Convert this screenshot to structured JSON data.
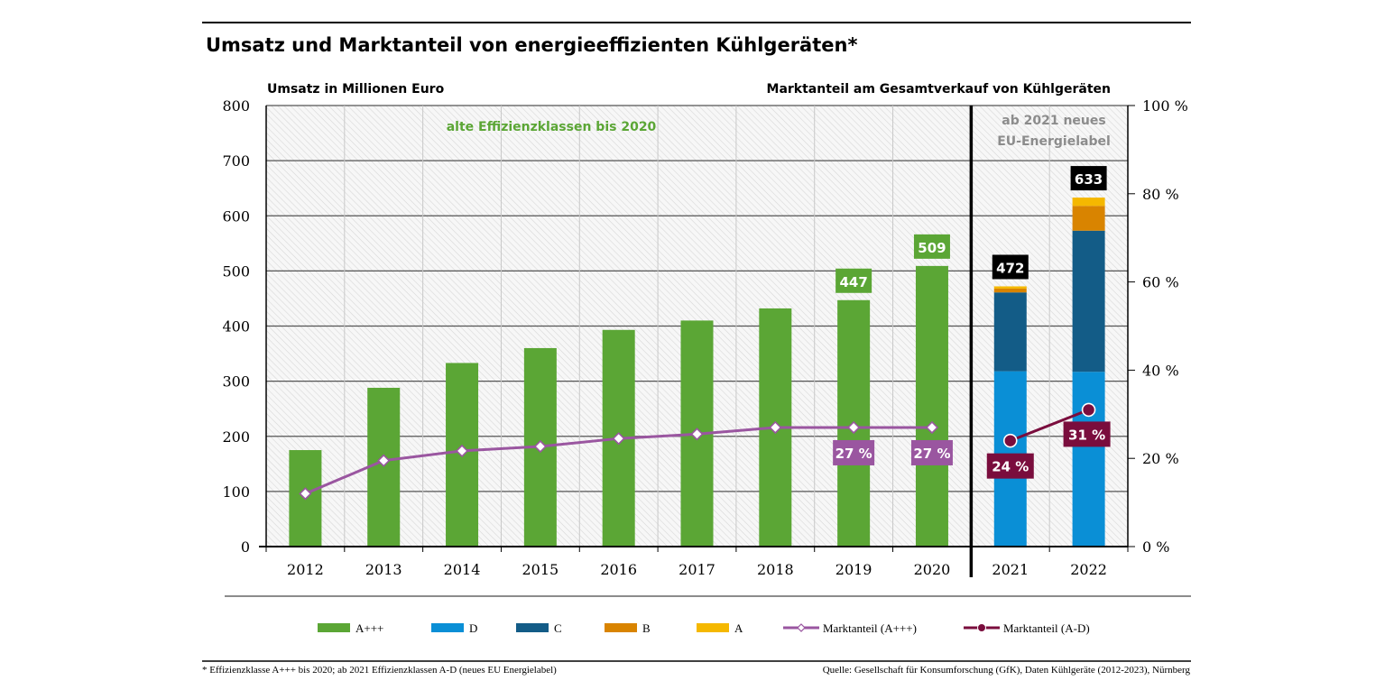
{
  "title": "Umsatz und Marktanteil von energieeffizienten Kühlgeräten*",
  "left_axis_title": "Umsatz in Millionen Euro",
  "right_axis_title": "Marktanteil am Gesamtverkauf von Kühlgeräten",
  "note_old": "alte Effizienzklassen bis 2020",
  "note_new_line1": "ab 2021 neues",
  "note_new_line2": "EU-Energielabel",
  "footnote": "* Effizienzklasse A+++ bis 2020; ab 2021 Effizienzklassen A-D (neues EU Energielabel)",
  "source": "Quelle: Gesellschaft für Konsumforschung (GfK), Daten Kühlgeräte (2012-2023), Nürnberg",
  "colors": {
    "A+++": "#5ba635",
    "D": "#0a8fd6",
    "C": "#135c87",
    "B": "#d98400",
    "A": "#f5b800",
    "share_old": "#9a56a0",
    "share_new": "#7a0d3d",
    "total_label_bg": "#000000",
    "grid": "#555555"
  },
  "chart_data": {
    "type": "bar",
    "categories": [
      "2012",
      "2013",
      "2014",
      "2015",
      "2016",
      "2017",
      "2018",
      "2019",
      "2020",
      "2021",
      "2022"
    ],
    "series": [
      {
        "name": "A+++",
        "values": [
          175,
          288,
          333,
          360,
          393,
          410,
          432,
          447,
          509,
          0,
          0
        ]
      },
      {
        "name": "D",
        "values": [
          0,
          0,
          0,
          0,
          0,
          0,
          0,
          0,
          0,
          318,
          317
        ]
      },
      {
        "name": "C",
        "values": [
          0,
          0,
          0,
          0,
          0,
          0,
          0,
          0,
          0,
          143,
          256
        ]
      },
      {
        "name": "B",
        "values": [
          0,
          0,
          0,
          0,
          0,
          0,
          0,
          0,
          0,
          7,
          45
        ]
      },
      {
        "name": "A",
        "values": [
          0,
          0,
          0,
          0,
          0,
          0,
          0,
          0,
          0,
          4,
          15
        ]
      }
    ],
    "total_labels": [
      {
        "category": "2019",
        "text": "447",
        "style": "green"
      },
      {
        "category": "2020",
        "text": "509",
        "style": "green"
      },
      {
        "category": "2021",
        "text": "472",
        "style": "black"
      },
      {
        "category": "2022",
        "text": "633",
        "style": "black"
      }
    ],
    "lines": [
      {
        "name": "Marktanteil (A+++)",
        "axis": "right",
        "x": [
          "2012",
          "2013",
          "2014",
          "2015",
          "2016",
          "2017",
          "2018",
          "2019",
          "2020"
        ],
        "values": [
          12,
          19.5,
          21.7,
          22.7,
          24.5,
          25.5,
          27,
          27,
          27
        ]
      },
      {
        "name": "Marktanteil (A-D)",
        "axis": "right",
        "x": [
          "2021",
          "2022"
        ],
        "values": [
          24,
          31
        ]
      }
    ],
    "line_labels": [
      {
        "category": "2019",
        "text": "27 %",
        "series": "Marktanteil (A+++)"
      },
      {
        "category": "2020",
        "text": "27 %",
        "series": "Marktanteil (A+++)"
      },
      {
        "category": "2021",
        "text": "24  %",
        "series": "Marktanteil (A-D)"
      },
      {
        "category": "2022",
        "text": "31  %",
        "series": "Marktanteil (A-D)"
      }
    ],
    "ylim_left": [
      0,
      800
    ],
    "yticks_left": [
      "0",
      "100",
      "200",
      "300",
      "400",
      "500",
      "600",
      "700",
      "800"
    ],
    "ylim_right": [
      0,
      100
    ],
    "yticks_right": [
      "0 %",
      "20 %",
      "40 %",
      "60 %",
      "80 %",
      "100 %"
    ],
    "divider_after": "2020",
    "legend": [
      {
        "label": "A+++",
        "kind": "box",
        "color_key": "A+++"
      },
      {
        "label": "D",
        "kind": "box",
        "color_key": "D"
      },
      {
        "label": "C",
        "kind": "box",
        "color_key": "C"
      },
      {
        "label": "B",
        "kind": "box",
        "color_key": "B"
      },
      {
        "label": "A",
        "kind": "box",
        "color_key": "A"
      },
      {
        "label": "Marktanteil (A+++)",
        "kind": "line-diamond",
        "color_key": "share_old"
      },
      {
        "label": "Marktanteil (A-D)",
        "kind": "line-dot",
        "color_key": "share_new"
      }
    ],
    "grid": true
  }
}
